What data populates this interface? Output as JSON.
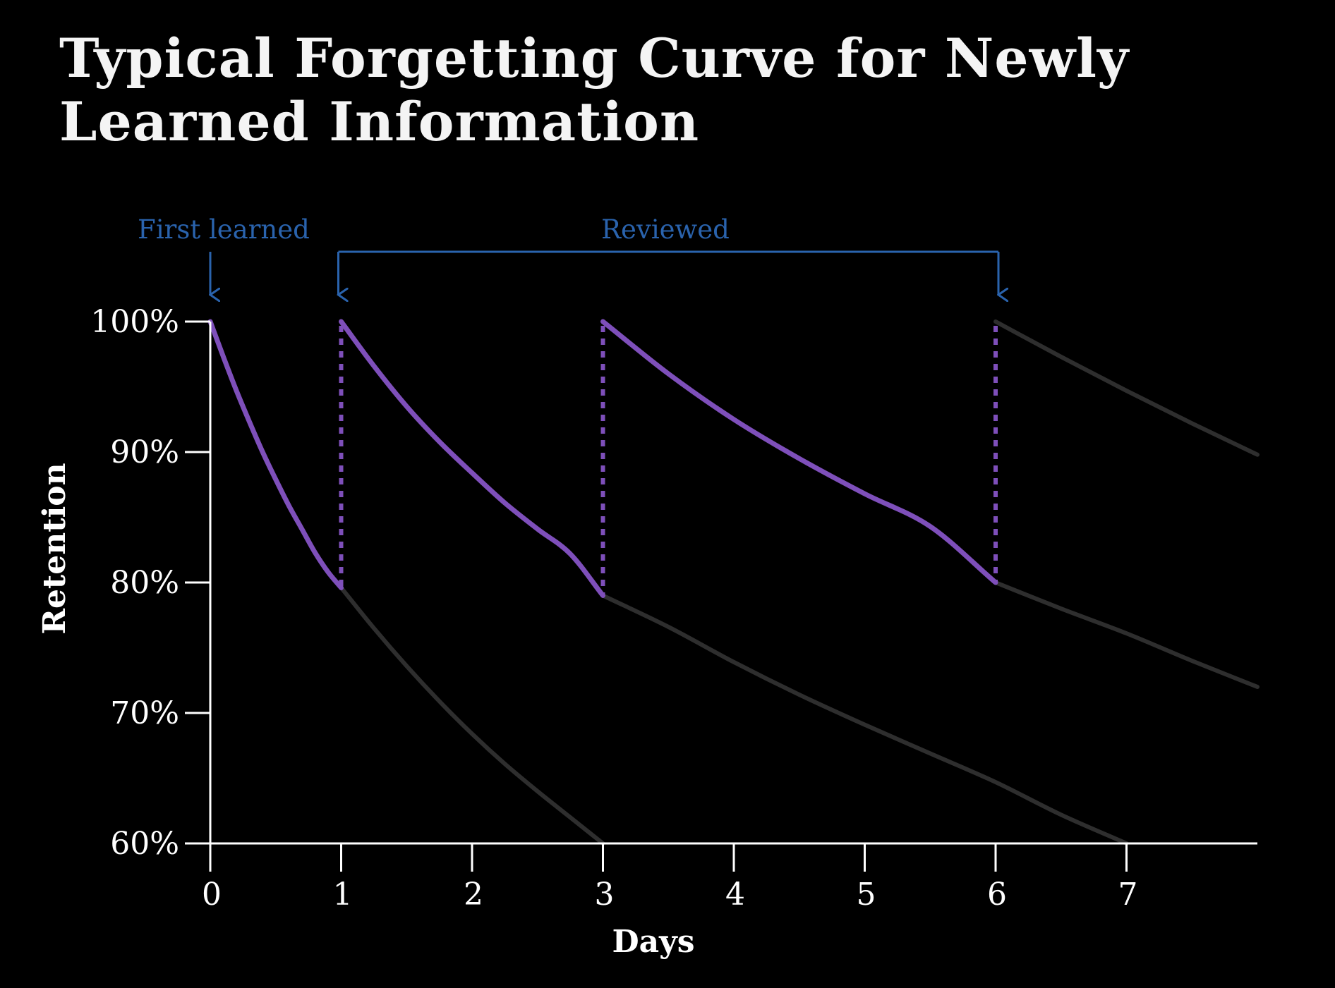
{
  "title": "Typical Forgetting Curve for Newly Learned Information",
  "colors": {
    "background": "#000000",
    "axis": "#ffffff",
    "reviewed_curve": "#7e4fba",
    "unreviewed_curve": "#2e2e2e",
    "annotation": "#2a63ad"
  },
  "annotations": {
    "first_learned": "First learned",
    "reviewed": "Reviewed"
  },
  "chart_data": {
    "type": "line",
    "title": "Typical Forgetting Curve for Newly Learned Information",
    "xlabel": "Days",
    "ylabel": "Retention",
    "xlim": [
      0,
      8
    ],
    "ylim": [
      60,
      100
    ],
    "x_ticks": [
      0,
      1,
      2,
      3,
      4,
      5,
      6,
      7
    ],
    "x_tick_labels": [
      "0",
      "1",
      "2",
      "3",
      "4",
      "5",
      "6",
      "7"
    ],
    "y_ticks": [
      60,
      70,
      80,
      90,
      100
    ],
    "y_tick_labels": [
      "60%",
      "70%",
      "80%",
      "90%",
      "100%"
    ],
    "grid": false,
    "review_points": [
      1,
      3,
      6
    ],
    "series": [
      {
        "role": "reviewed",
        "points": [
          [
            0,
            100
          ],
          [
            0.1,
            97.3
          ],
          [
            0.2,
            94.7
          ],
          [
            0.3,
            92.3
          ],
          [
            0.4,
            90.0
          ],
          [
            0.5,
            87.9
          ],
          [
            0.6,
            85.9
          ],
          [
            0.7,
            84.1
          ],
          [
            0.8,
            82.3
          ],
          [
            0.9,
            80.8
          ],
          [
            1,
            79.6
          ]
        ]
      },
      {
        "role": "unreviewed",
        "points": [
          [
            1,
            79.6
          ],
          [
            1.25,
            76.5
          ],
          [
            1.5,
            73.6
          ],
          [
            1.75,
            70.9
          ],
          [
            2,
            68.4
          ],
          [
            2.25,
            66.1
          ],
          [
            2.5,
            64.0
          ],
          [
            2.75,
            62.0
          ],
          [
            3,
            60.0
          ]
        ]
      },
      {
        "role": "reviewed",
        "points": [
          [
            1,
            100
          ],
          [
            1.25,
            96.6
          ],
          [
            1.5,
            93.5
          ],
          [
            1.75,
            90.8
          ],
          [
            2,
            88.4
          ],
          [
            2.25,
            86.1
          ],
          [
            2.5,
            84.1
          ],
          [
            2.75,
            82.2
          ],
          [
            3,
            79.0
          ]
        ]
      },
      {
        "role": "unreviewed",
        "points": [
          [
            3,
            79.0
          ],
          [
            3.5,
            76.6
          ],
          [
            4,
            73.9
          ],
          [
            4.5,
            71.4
          ],
          [
            5,
            69.1
          ],
          [
            5.5,
            66.9
          ],
          [
            6,
            64.7
          ],
          [
            6.5,
            62.2
          ],
          [
            7,
            60.0
          ]
        ]
      },
      {
        "role": "reviewed",
        "points": [
          [
            3,
            100
          ],
          [
            3.5,
            96.0
          ],
          [
            4,
            92.5
          ],
          [
            4.5,
            89.5
          ],
          [
            5,
            86.8
          ],
          [
            5.5,
            84.3
          ],
          [
            6,
            80.0
          ]
        ]
      },
      {
        "role": "unreviewed",
        "points": [
          [
            6,
            80.0
          ],
          [
            6.5,
            78.0
          ],
          [
            7,
            76.1
          ],
          [
            7.5,
            74.0
          ],
          [
            8,
            72.0
          ]
        ]
      },
      {
        "role": "unreviewed",
        "points": [
          [
            6,
            100
          ],
          [
            6.5,
            97.3
          ],
          [
            7,
            94.7
          ],
          [
            7.5,
            92.2
          ],
          [
            8,
            89.8
          ]
        ]
      }
    ]
  }
}
